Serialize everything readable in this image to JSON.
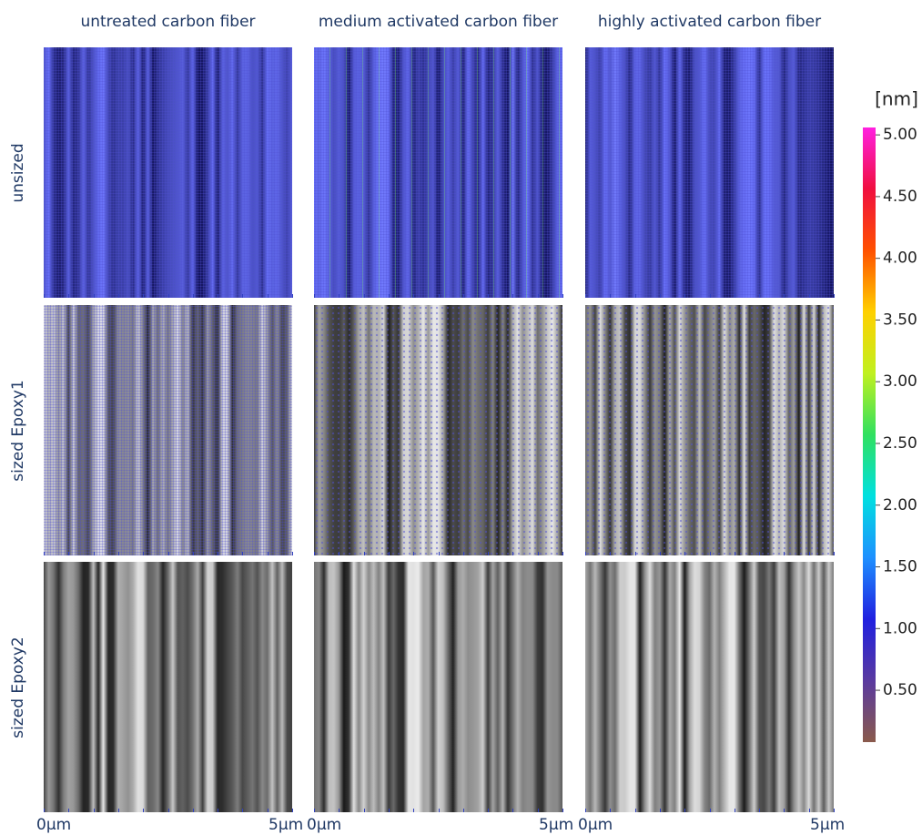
{
  "columns": [
    "untreated carbon fiber",
    "medium activated carbon fiber",
    "highly activated carbon fiber"
  ],
  "rows": [
    "unsized",
    "sized Epoxy1",
    "sized Epoxy2"
  ],
  "x_axis": {
    "start": "0µm",
    "end": "5µm"
  },
  "colorbar": {
    "unit": "[nm]",
    "lim": [
      0.08,
      5.06
    ],
    "ticks": [
      {
        "value": 0.5,
        "label": "0.50"
      },
      {
        "value": 1,
        "label": "1.00"
      },
      {
        "value": 1.5,
        "label": "1.50"
      },
      {
        "value": 2,
        "label": "2.00"
      },
      {
        "value": 2.5,
        "label": "2.50"
      },
      {
        "value": 3,
        "label": "3.00"
      },
      {
        "value": 3.5,
        "label": "3.50"
      },
      {
        "value": 4,
        "label": "4.00"
      },
      {
        "value": 4.5,
        "label": "4.50"
      },
      {
        "value": 5,
        "label": "5.00"
      }
    ]
  }
}
